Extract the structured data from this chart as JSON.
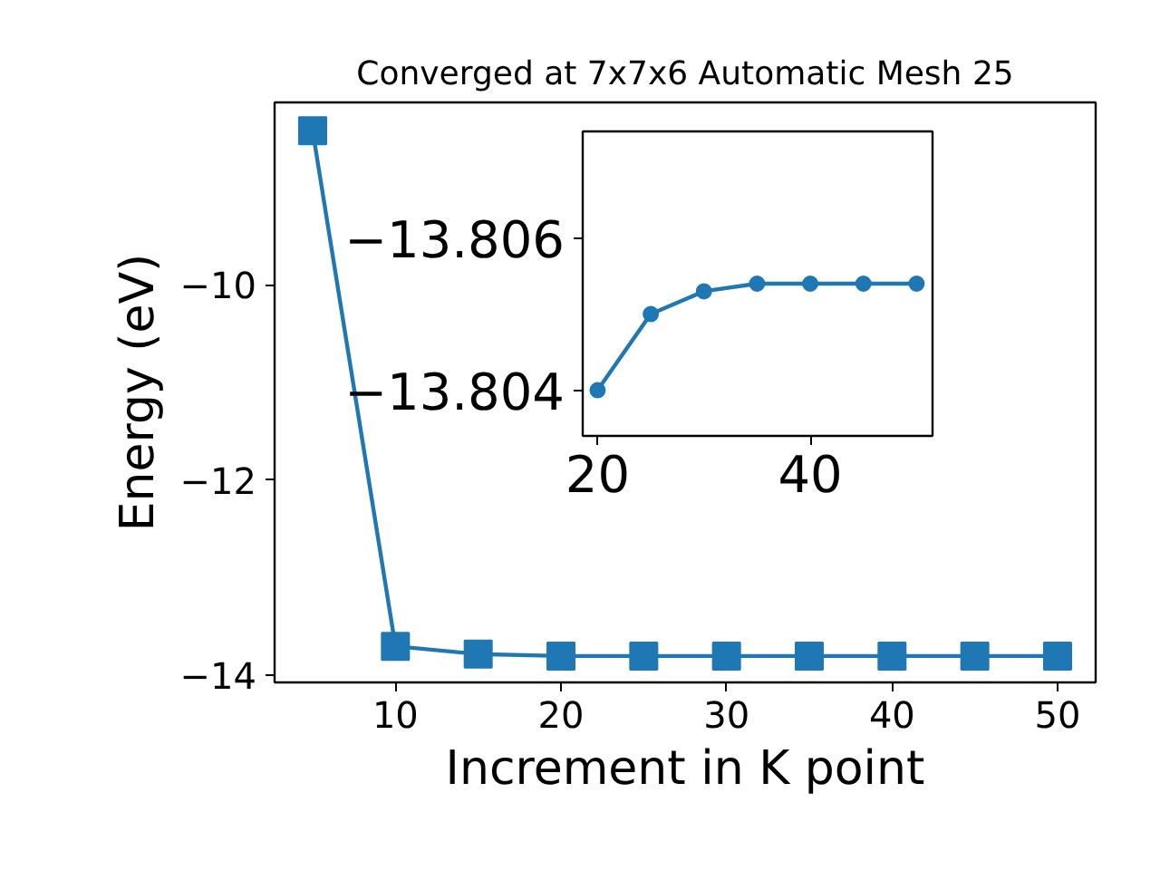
{
  "chart_data": [
    {
      "type": "line",
      "title": "Converged at 7x7x6 Automatic Mesh 25",
      "xlabel": "Increment in K point",
      "ylabel": "Energy (eV)",
      "x": [
        5,
        10,
        15,
        20,
        25,
        30,
        35,
        40,
        45,
        50
      ],
      "series": [
        {
          "color": "#1f77b4",
          "values": [
            -8.42,
            -13.7,
            -13.78,
            -13.8,
            -13.8,
            -13.8,
            -13.8,
            -13.8,
            -13.8,
            -13.8
          ]
        }
      ],
      "xlim": [
        2.7,
        52.3
      ],
      "ylim": [
        -14.07,
        -8.13
      ],
      "xticks": [
        10,
        20,
        30,
        40,
        50
      ],
      "yticks": [
        {
          "value": -10,
          "label": "−10"
        },
        {
          "value": -12,
          "label": "−12"
        },
        {
          "value": -14,
          "label": "−14"
        }
      ],
      "marker": "square",
      "line_style": "solid",
      "grid": false
    },
    {
      "type": "line",
      "x": [
        20,
        25,
        30,
        35,
        40,
        45,
        50
      ],
      "series": [
        {
          "color": "#1f77b4",
          "values": [
            -13.804,
            -13.805,
            -13.8053,
            -13.8054,
            -13.8054,
            -13.8054,
            -13.8054
          ]
        }
      ],
      "xlim": [
        18.6,
        51.5
      ],
      "ylim": [
        -13.8034,
        -13.8074
      ],
      "xticks": [
        20,
        40
      ],
      "yticks": [
        {
          "value": -13.806,
          "label": "−13.806"
        },
        {
          "value": -13.804,
          "label": "−13.804"
        }
      ],
      "marker": "circle",
      "line_style": "solid",
      "grid": false
    }
  ]
}
